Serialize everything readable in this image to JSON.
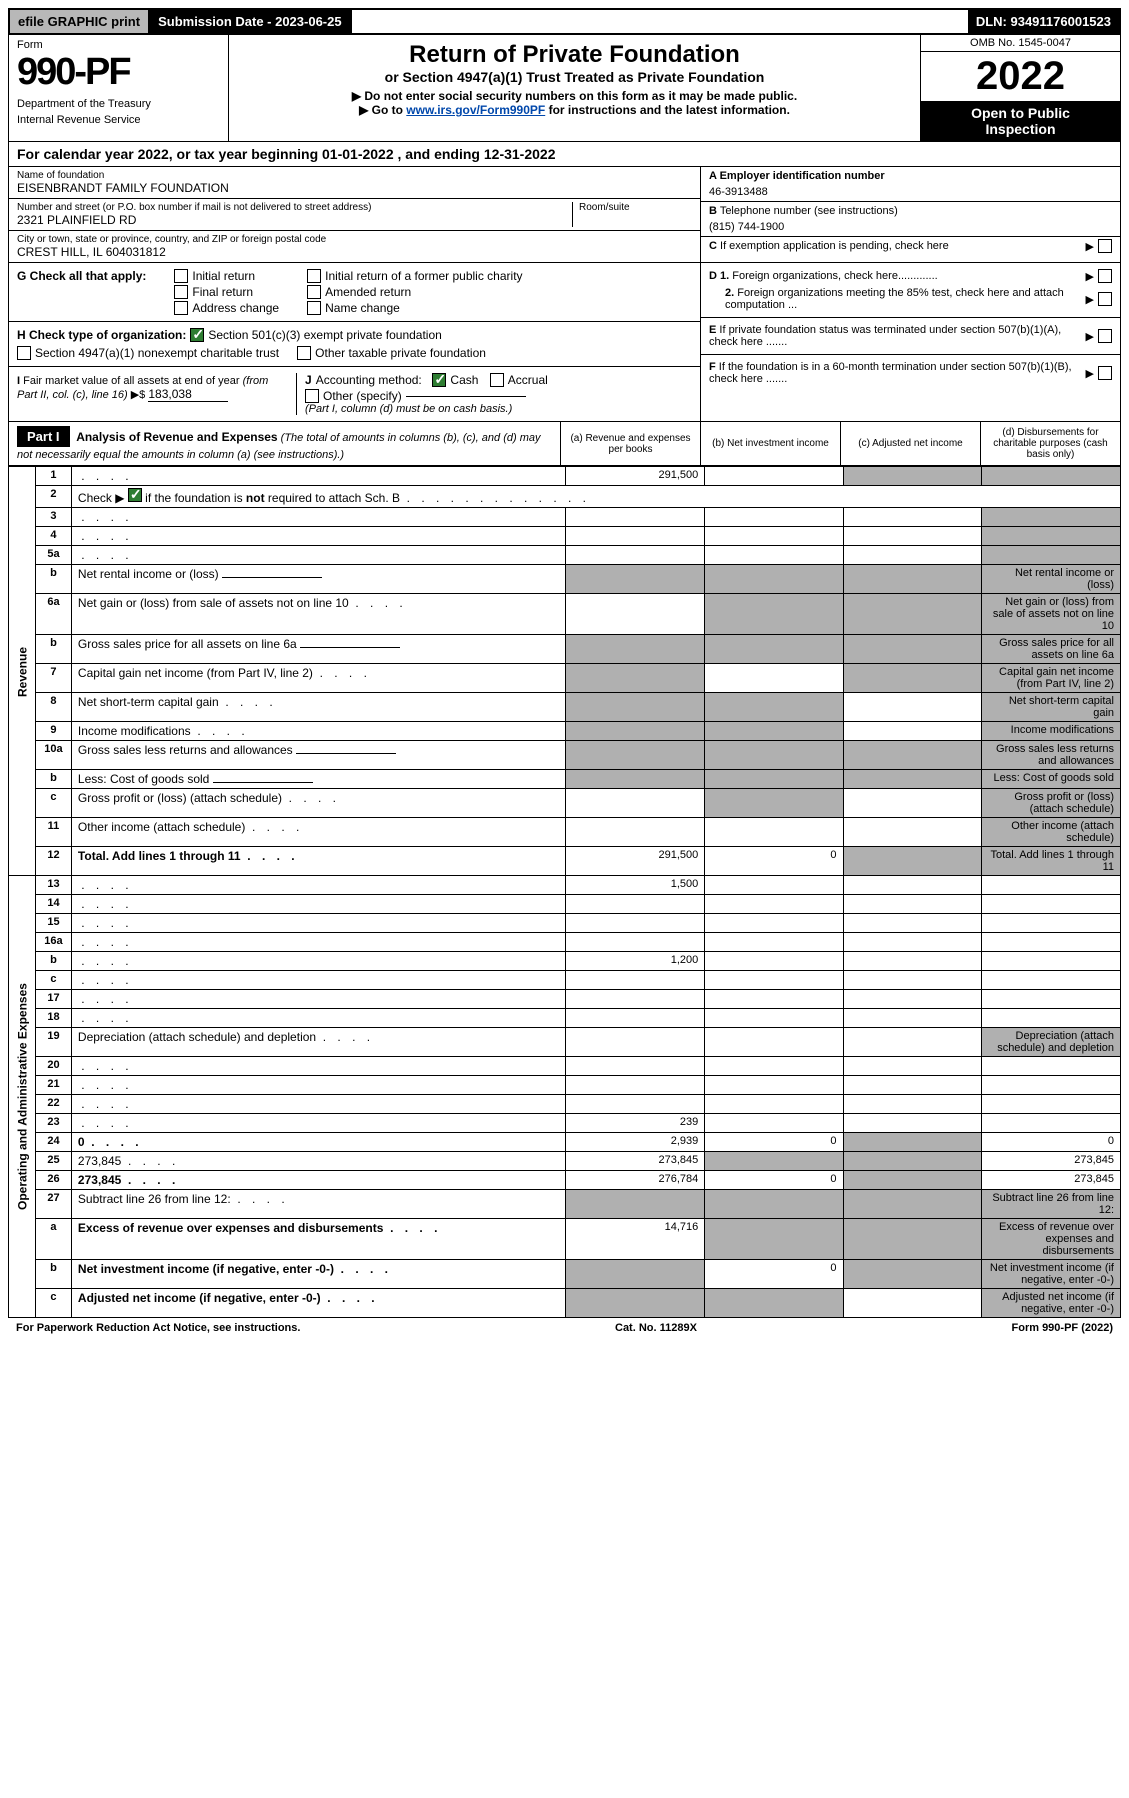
{
  "topbar": {
    "efile": "efile GRAPHIC print",
    "subdate": "Submission Date - 2023-06-25",
    "dln": "DLN: 93491176001523"
  },
  "form": {
    "label": "Form",
    "number": "990-PF",
    "dept1": "Department of the Treasury",
    "dept2": "Internal Revenue Service"
  },
  "title": {
    "main": "Return of Private Foundation",
    "sub1": "or Section 4947(a)(1) Trust Treated as Private Foundation",
    "sub2": "▶ Do not enter social security numbers on this form as it may be made public.",
    "sub3a": "▶ Go to ",
    "sub3link": "www.irs.gov/Form990PF",
    "sub3b": " for instructions and the latest information."
  },
  "yearbox": {
    "omb": "OMB No. 1545-0047",
    "year": "2022",
    "inspect1": "Open to Public",
    "inspect2": "Inspection"
  },
  "calyear": {
    "text1": "For calendar year 2022, or tax year beginning ",
    "begin": "01-01-2022",
    "text2": " , and ending ",
    "end": "12-31-2022"
  },
  "nameblock": {
    "name_lbl": "Name of foundation",
    "name_val": "EISENBRANDT FAMILY FOUNDATION",
    "addr_lbl": "Number and street (or P.O. box number if mail is not delivered to street address)",
    "addr_val": "2321 PLAINFIELD RD",
    "room_lbl": "Room/suite",
    "city_lbl": "City or town, state or province, country, and ZIP or foreign postal code",
    "city_val": "CREST HILL, IL  604031812"
  },
  "rightblock": {
    "a_lbl": "A Employer identification number",
    "a_val": "46-3913488",
    "b_lbl": "B Telephone number (see instructions)",
    "b_val": "(815) 744-1900",
    "c_lbl": "C If exemption application is pending, check here",
    "d1_lbl": "D 1. Foreign organizations, check here.............",
    "d2_lbl": "2. Foreign organizations meeting the 85% test, check here and attach computation ...",
    "e_lbl": "E  If private foundation status was terminated under section 507(b)(1)(A), check here .......",
    "f_lbl": "F  If the foundation is in a 60-month termination under section 507(b)(1)(B), check here ......."
  },
  "sectionG": {
    "g_lbl": "G Check all that apply:",
    "g_opts": [
      "Initial return",
      "Final return",
      "Address change",
      "Initial return of a former public charity",
      "Amended return",
      "Name change"
    ],
    "h_lbl": "H Check type of organization:",
    "h_opt1": "Section 501(c)(3) exempt private foundation",
    "h_opt2": "Section 4947(a)(1) nonexempt charitable trust",
    "h_opt3": "Other taxable private foundation",
    "i_lbl": "I Fair market value of all assets at end of year (from Part II, col. (c), line 16) ▶$ ",
    "i_val": "183,038",
    "j_lbl": "J Accounting method:",
    "j_cash": "Cash",
    "j_accrual": "Accrual",
    "j_other": "Other (specify)",
    "j_note": "(Part I, column (d) must be on cash basis.)"
  },
  "part1": {
    "hdr": "Part I",
    "title": "Analysis of Revenue and Expenses",
    "title_note": " (The total of amounts in columns (b), (c), and (d) may not necessarily equal the amounts in column (a) (see instructions).)",
    "col_a": "(a)   Revenue and expenses per books",
    "col_b": "(b)   Net investment income",
    "col_c": "(c)   Adjusted net income",
    "col_d": "(d)  Disbursements for charitable purposes (cash basis only)"
  },
  "side_labels": {
    "revenue": "Revenue",
    "expenses": "Operating and Administrative Expenses"
  },
  "rows": [
    {
      "n": "1",
      "d": "",
      "a": "291,500",
      "b": "",
      "c": "",
      "shade_b": false,
      "shade_c": true,
      "shade_d": true
    },
    {
      "n": "2",
      "d": "Check ▶ ☑ if the foundation is not required to attach Sch. B",
      "span_note": true
    },
    {
      "n": "3",
      "d": "",
      "a": "",
      "b": "",
      "c": "",
      "shade_d": true
    },
    {
      "n": "4",
      "d": "",
      "a": "",
      "b": "",
      "c": "",
      "shade_d": true
    },
    {
      "n": "5a",
      "d": "",
      "a": "",
      "b": "",
      "c": "",
      "shade_d": true
    },
    {
      "n": "b",
      "d": "Net rental income or (loss)",
      "inline_box": true,
      "shade_a": true,
      "shade_b": true,
      "shade_c": true,
      "shade_d": true
    },
    {
      "n": "6a",
      "d": "Net gain or (loss) from sale of assets not on line 10",
      "a": "",
      "shade_b": true,
      "shade_c": true,
      "shade_d": true
    },
    {
      "n": "b",
      "d": "Gross sales price for all assets on line 6a",
      "inline_box": true,
      "shade_a": true,
      "shade_b": true,
      "shade_c": true,
      "shade_d": true
    },
    {
      "n": "7",
      "d": "Capital gain net income (from Part IV, line 2)",
      "shade_a": true,
      "b": "",
      "shade_c": true,
      "shade_d": true
    },
    {
      "n": "8",
      "d": "Net short-term capital gain",
      "shade_a": true,
      "shade_b": true,
      "c": "",
      "shade_d": true
    },
    {
      "n": "9",
      "d": "Income modifications",
      "shade_a": true,
      "shade_b": true,
      "c": "",
      "shade_d": true
    },
    {
      "n": "10a",
      "d": "Gross sales less returns and allowances",
      "inline_box": true,
      "shade_a": true,
      "shade_b": true,
      "shade_c": true,
      "shade_d": true
    },
    {
      "n": "b",
      "d": "Less: Cost of goods sold",
      "inline_box": true,
      "shade_a": true,
      "shade_b": true,
      "shade_c": true,
      "shade_d": true
    },
    {
      "n": "c",
      "d": "Gross profit or (loss) (attach schedule)",
      "a": "",
      "shade_b": true,
      "c": "",
      "shade_d": true
    },
    {
      "n": "11",
      "d": "Other income (attach schedule)",
      "a": "",
      "b": "",
      "c": "",
      "shade_d": true
    },
    {
      "n": "12",
      "d": "Total. Add lines 1 through 11",
      "bold": true,
      "a": "291,500",
      "b": "0",
      "shade_c": true,
      "shade_d": true
    },
    {
      "n": "13",
      "d": "",
      "a": "1,500",
      "b": "",
      "c": ""
    },
    {
      "n": "14",
      "d": "",
      "a": "",
      "b": "",
      "c": ""
    },
    {
      "n": "15",
      "d": "",
      "a": "",
      "b": "",
      "c": ""
    },
    {
      "n": "16a",
      "d": "",
      "a": "",
      "b": "",
      "c": ""
    },
    {
      "n": "b",
      "d": "",
      "a": "1,200",
      "b": "",
      "c": ""
    },
    {
      "n": "c",
      "d": "",
      "a": "",
      "b": "",
      "c": ""
    },
    {
      "n": "17",
      "d": "",
      "a": "",
      "b": "",
      "c": ""
    },
    {
      "n": "18",
      "d": "",
      "a": "",
      "b": "",
      "c": ""
    },
    {
      "n": "19",
      "d": "Depreciation (attach schedule) and depletion",
      "a": "",
      "b": "",
      "c": "",
      "shade_d": true
    },
    {
      "n": "20",
      "d": "",
      "a": "",
      "b": "",
      "c": ""
    },
    {
      "n": "21",
      "d": "",
      "a": "",
      "b": "",
      "c": ""
    },
    {
      "n": "22",
      "d": "",
      "a": "",
      "b": "",
      "c": ""
    },
    {
      "n": "23",
      "d": "",
      "a": "239",
      "b": "",
      "c": ""
    },
    {
      "n": "24",
      "d": "0",
      "bold": true,
      "a": "2,939",
      "b": "0",
      "shade_c": true
    },
    {
      "n": "25",
      "d": "273,845",
      "a": "273,845",
      "shade_b": true,
      "shade_c": true
    },
    {
      "n": "26",
      "d": "273,845",
      "bold": true,
      "a": "276,784",
      "b": "0",
      "shade_c": true
    },
    {
      "n": "27",
      "d": "Subtract line 26 from line 12:",
      "shade_a": true,
      "shade_b": true,
      "shade_c": true,
      "shade_d": true
    },
    {
      "n": "a",
      "d": "Excess of revenue over expenses and disbursements",
      "bold": true,
      "a": "14,716",
      "shade_b": true,
      "shade_c": true,
      "shade_d": true
    },
    {
      "n": "b",
      "d": "Net investment income (if negative, enter -0-)",
      "bold": true,
      "shade_a": true,
      "b": "0",
      "shade_c": true,
      "shade_d": true
    },
    {
      "n": "c",
      "d": "Adjusted net income (if negative, enter -0-)",
      "bold": true,
      "shade_a": true,
      "shade_b": true,
      "c": "",
      "shade_d": true
    }
  ],
  "footer": {
    "left": "For Paperwork Reduction Act Notice, see instructions.",
    "mid": "Cat. No. 11289X",
    "right": "Form 990-PF (2022)"
  }
}
